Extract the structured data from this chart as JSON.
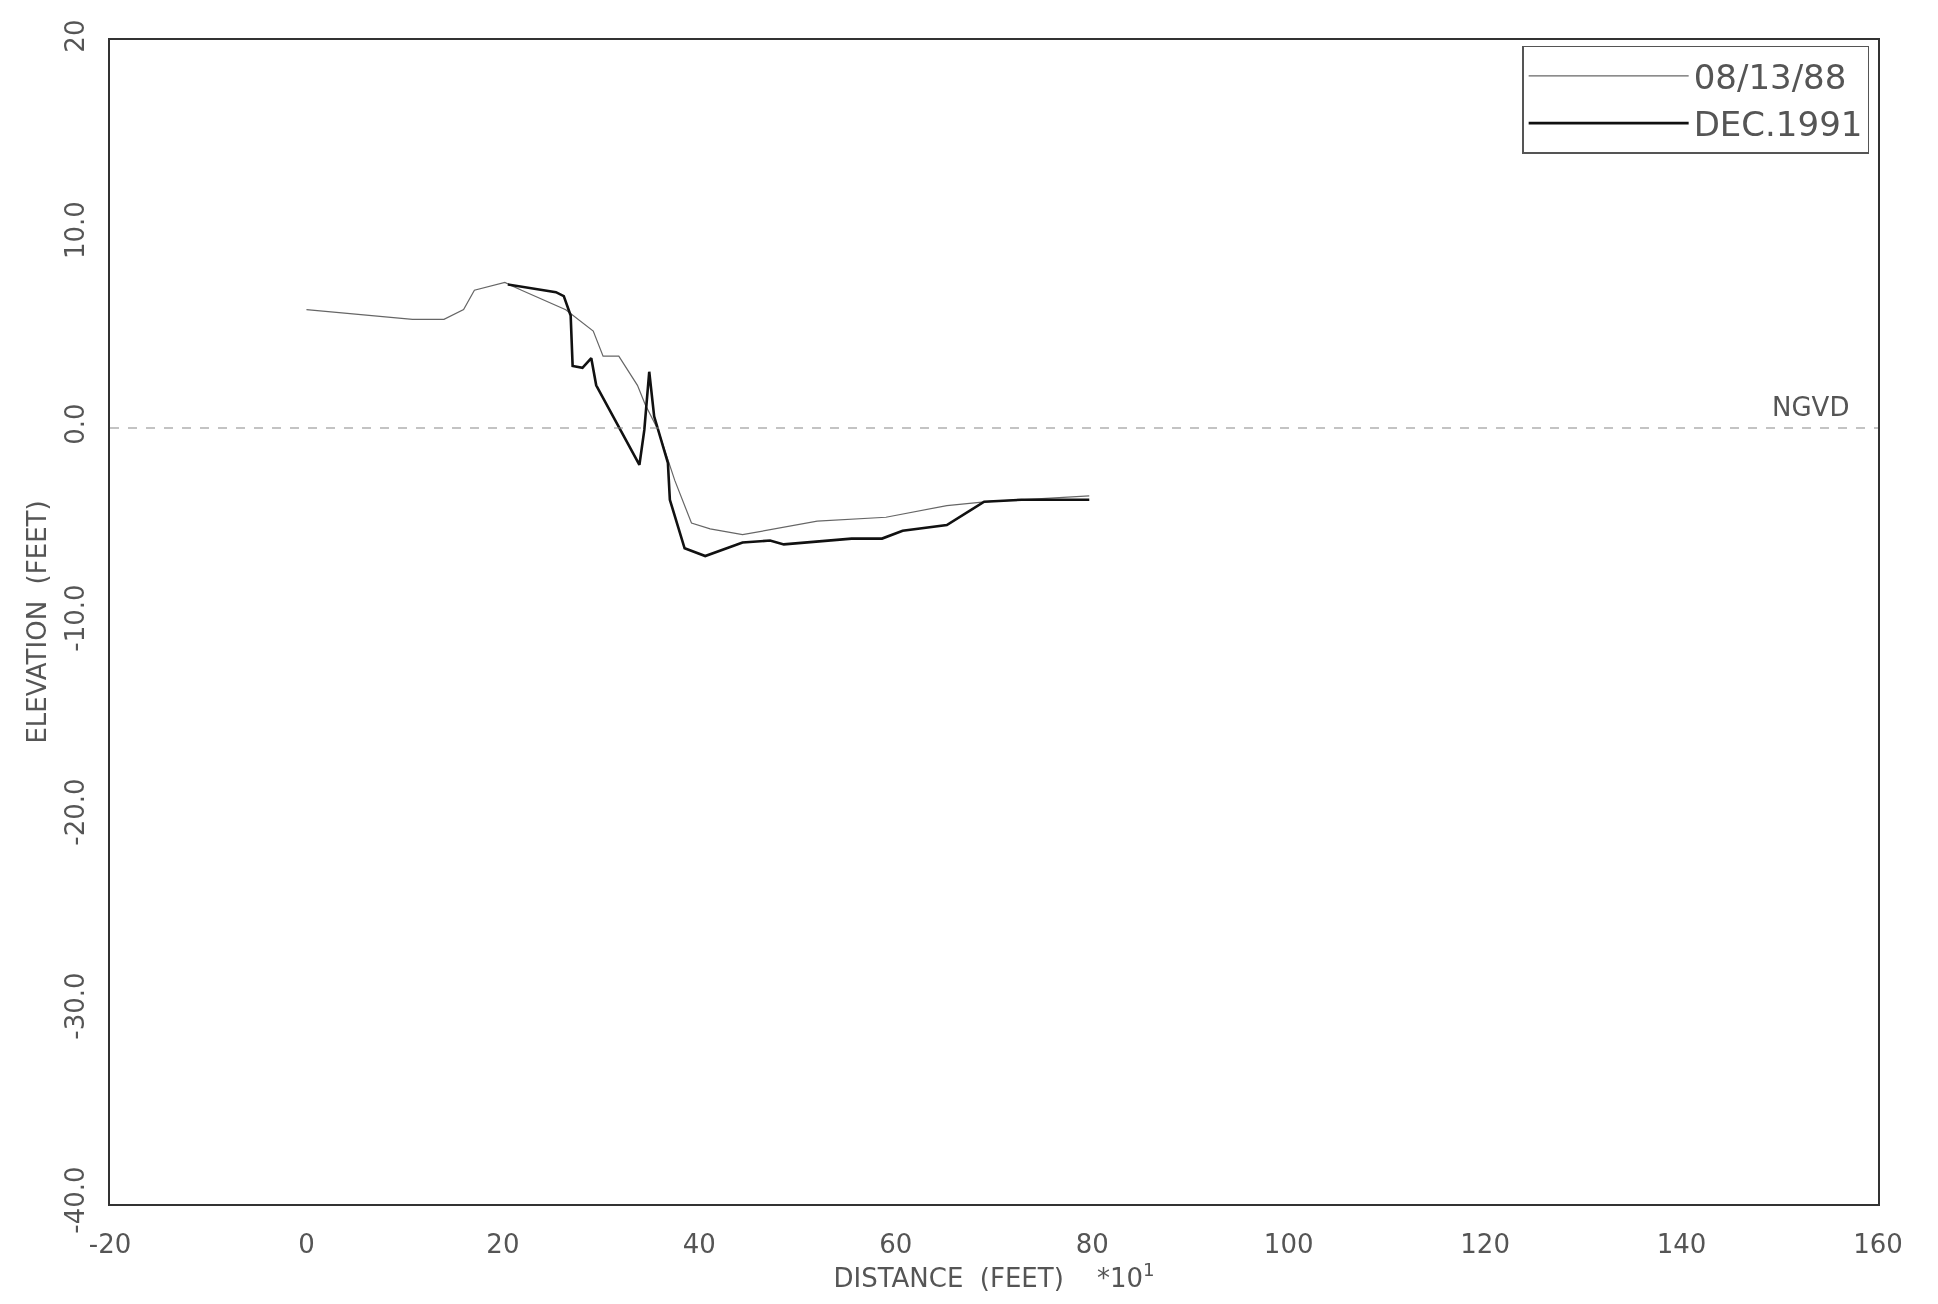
{
  "chart_data": {
    "type": "line",
    "xlabel": "DISTANCE  (FEET)    *10$^{1}$",
    "ylabel": "ELEVATION  (FEET)",
    "xlim": [
      -20,
      160
    ],
    "xticks": [
      -20,
      0,
      20,
      40,
      60,
      80,
      100,
      120,
      140,
      160
    ],
    "ylim": [
      -40,
      20
    ],
    "yticks": [
      {
        "value": -40,
        "label": "-40.0"
      },
      {
        "value": -30,
        "label": "-30.0"
      },
      {
        "value": -20,
        "label": "-20.0"
      },
      {
        "value": -10,
        "label": "-10.0"
      },
      {
        "value": 0,
        "label": "0.0"
      },
      {
        "value": 10,
        "label": "10.0"
      },
      20
    ],
    "grid": false,
    "legend": "top right",
    "marker": "none",
    "line_style": "solid",
    "ref_lines": [
      {
        "axis": "y",
        "value": 0,
        "label": "NGVD",
        "color": "#888888",
        "line_style": "dashed"
      }
    ],
    "series": [
      {
        "name": "08/13/88",
        "color": "#666666",
        "x": [
          0,
          10.8,
          14.0,
          16.0,
          17.1,
          20.2,
          21.9,
          26.4,
          29.2,
          30.2,
          31.8,
          33.7,
          34.5,
          35.8,
          37.5,
          39.2,
          41.1,
          44.4,
          52.0,
          59.0,
          65.2,
          69.3,
          79.7
        ],
        "values": [
          6.1,
          5.6,
          5.6,
          6.1,
          7.1,
          7.5,
          7.1,
          6.1,
          5.0,
          3.7,
          3.7,
          2.2,
          1.2,
          -0.1,
          -2.7,
          -4.9,
          -5.2,
          -5.5,
          -4.8,
          -4.6,
          -4.0,
          -3.8,
          -3.5
        ]
      },
      {
        "name": "DEC.1991",
        "color": "#111111",
        "x": [
          20.5,
          25.4,
          26.2,
          26.9,
          27.1,
          28.1,
          29.0,
          29.5,
          33.9,
          34.4,
          34.9,
          35.4,
          36.8,
          37.0,
          38.5,
          40.6,
          44.4,
          47.2,
          48.6,
          55.5,
          58.6,
          60.7,
          65.2,
          69.0,
          72.8,
          79.7
        ],
        "values": [
          7.4,
          7.0,
          6.8,
          5.8,
          3.2,
          3.1,
          3.6,
          2.2,
          -1.9,
          -0.1,
          2.9,
          0.6,
          -1.8,
          -3.7,
          -6.2,
          -6.6,
          -5.9,
          -5.8,
          -6.0,
          -5.7,
          -5.7,
          -5.3,
          -5.0,
          -3.8,
          -3.7,
          -3.7
        ]
      }
    ]
  }
}
